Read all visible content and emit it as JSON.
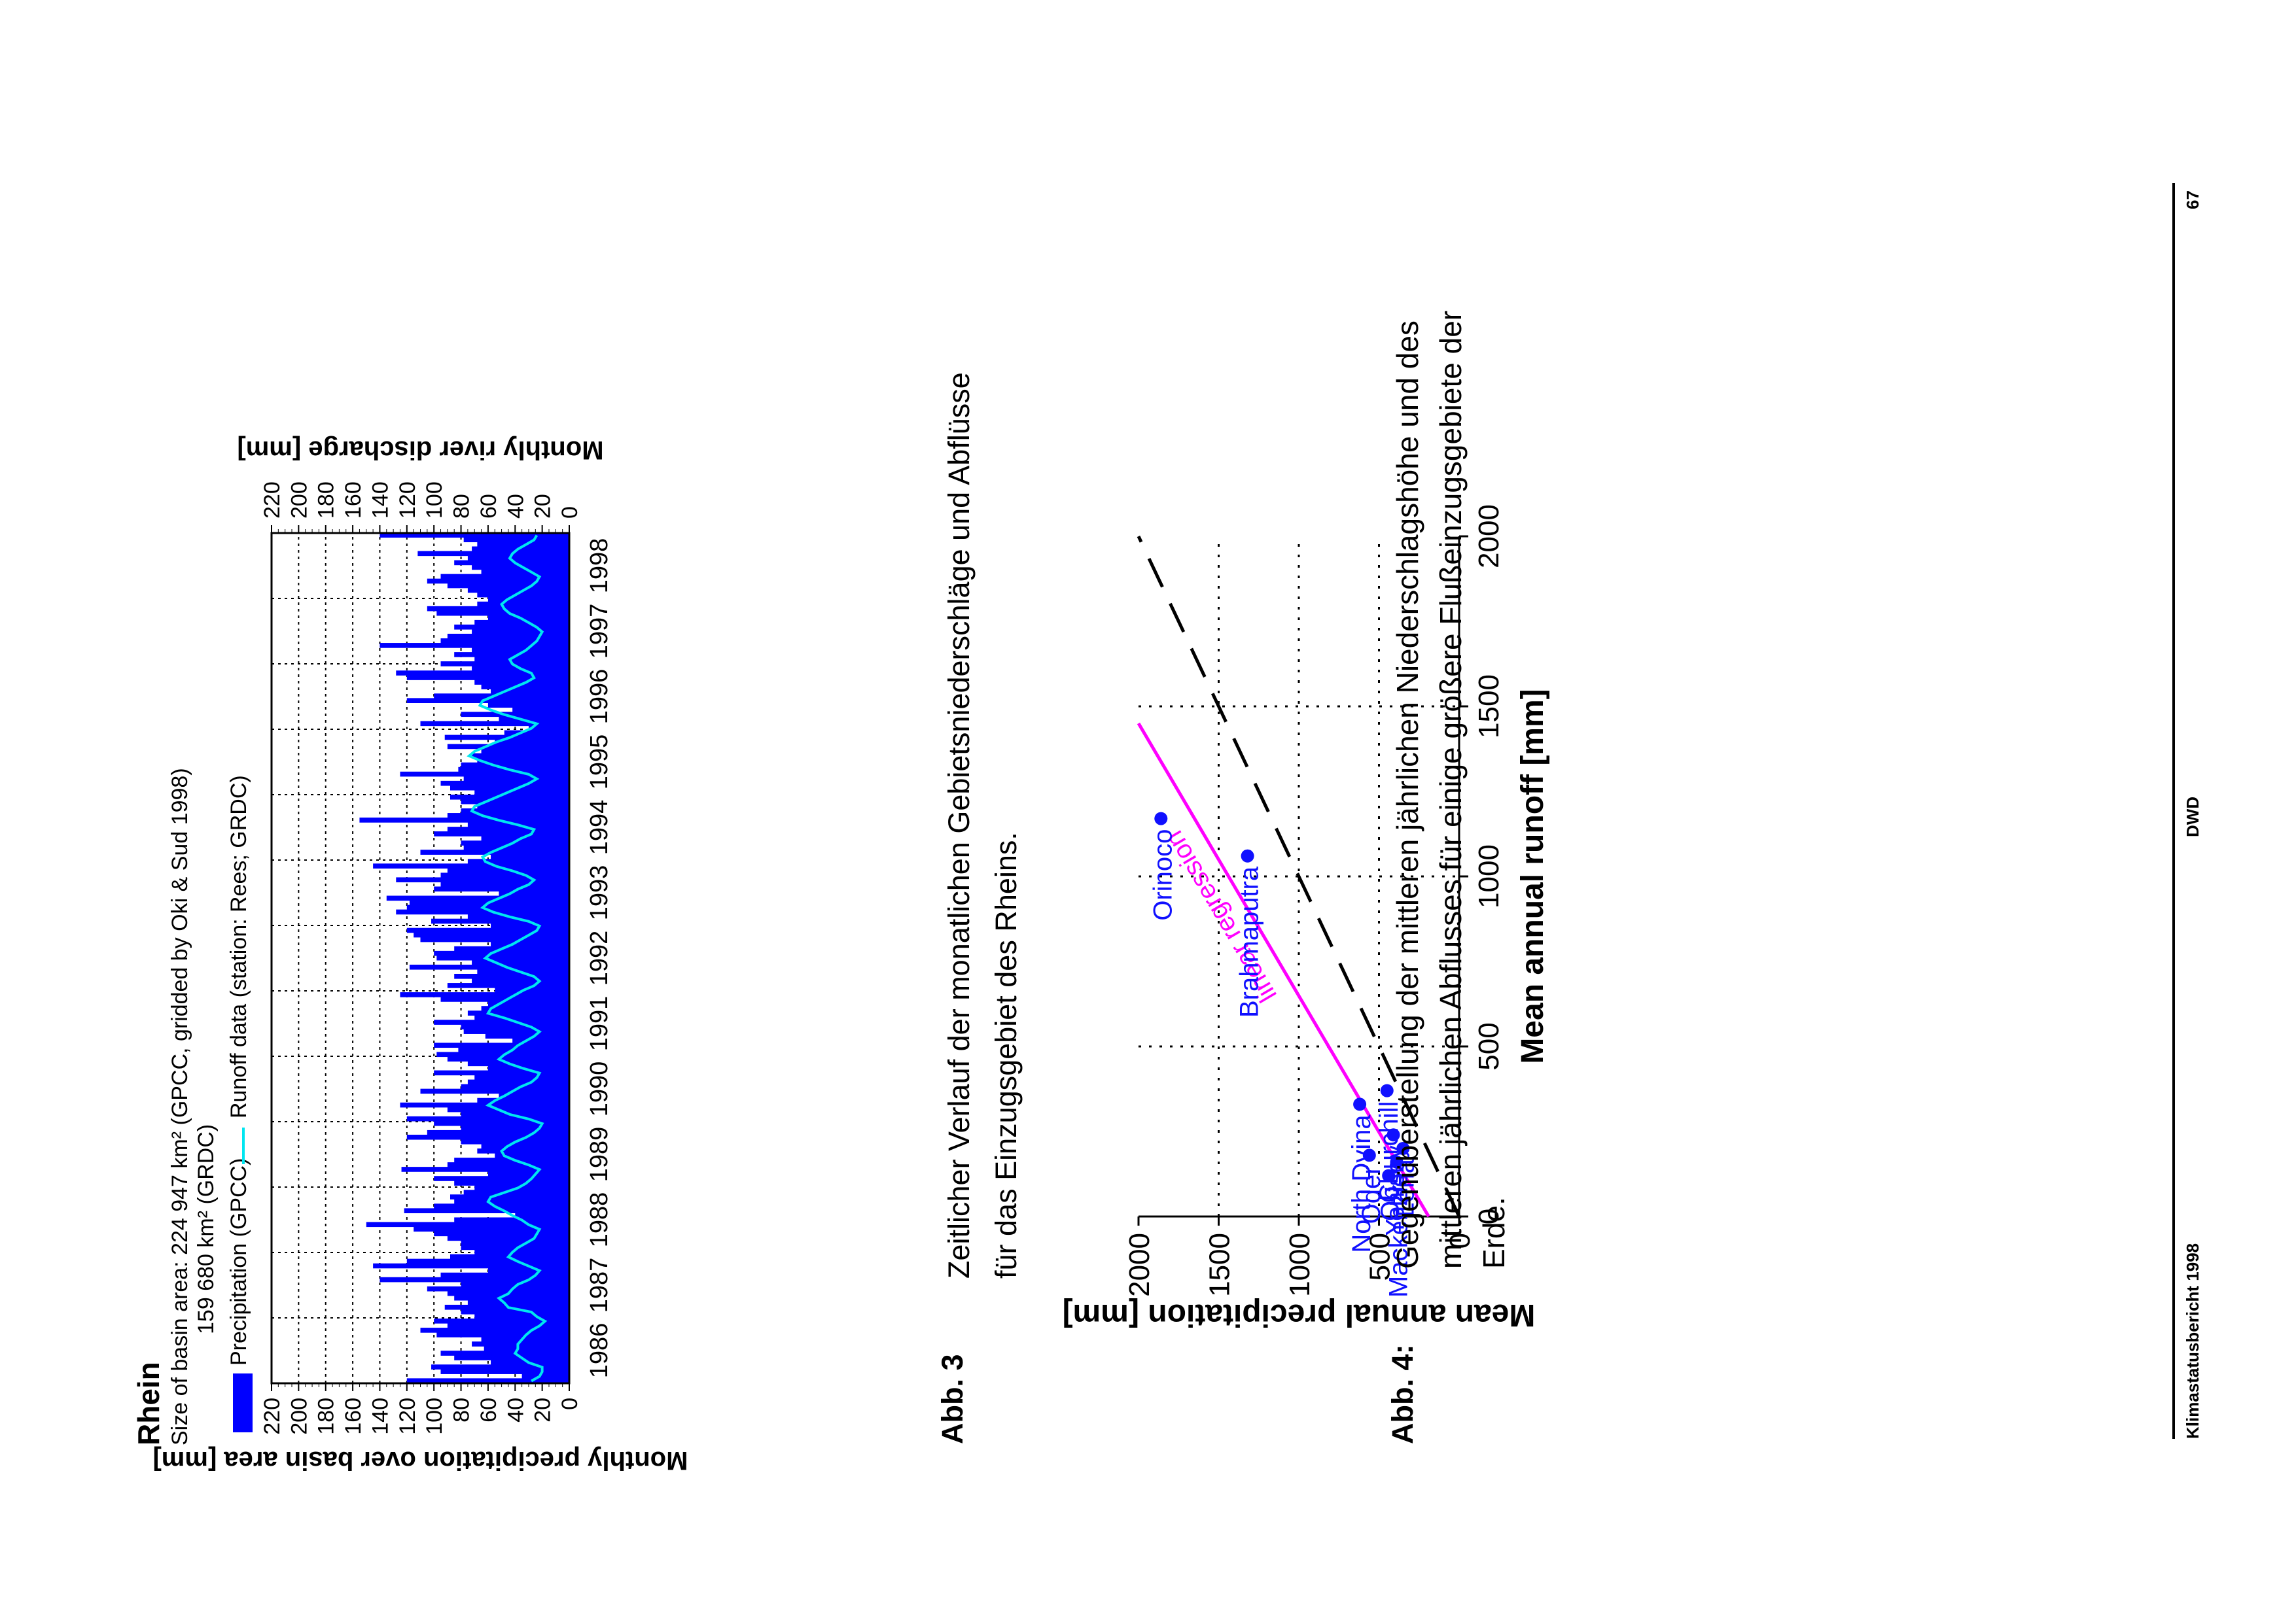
{
  "footer": {
    "left": "Klimastatusbericht 1998",
    "center": "DWD",
    "page": "67"
  },
  "fig3": {
    "label": "Abb. 3",
    "caption_line1": "Zeitlicher Verlauf der monatlichen Gebietsniederschläge und Abflüsse",
    "caption_line2": "für das Einzugsgebiet des Rheins."
  },
  "fig4": {
    "label": "Abb. 4:",
    "caption_line1": "Gegenüberstellung der mittleren jährlichen Niederschlagshöhe und des",
    "caption_line2": "mittleren jährlichen Abflusses für einige größere Flußeinzugsgebiete der",
    "caption_line3": "Erde."
  },
  "chart_data": [
    {
      "type": "bar",
      "title": "Rhein",
      "subtitle_line1": "Size of basin area: 224 947 km² (GPCC, gridded by Oki & Sud 1998)",
      "subtitle_line2": "159 680 km² (GRDC)",
      "legend": {
        "precip": "Precipitation (GPCC)",
        "runoff": "Runoff data (station: Rees; GRDC)"
      },
      "ylabel_left": "Monthly precipitation over basin area [mm]",
      "ylabel_right": "Monthly river discharge [mm]",
      "ylim": [
        0,
        220
      ],
      "yticks": [
        "0",
        "20",
        "40",
        "60",
        "80",
        "100",
        "120",
        "140",
        "160",
        "180",
        "200",
        "220"
      ],
      "xticks": [
        "1986",
        "1987",
        "1988",
        "1989",
        "1990",
        "1991",
        "1992",
        "1993",
        "1994",
        "1995",
        "1996",
        "1997",
        "1998"
      ],
      "colors": {
        "precip": "#0000ff",
        "runoff": "#00e6f0",
        "grid": "#000000"
      },
      "series": [
        {
          "name": "Precipitation (GPCC)",
          "values": [
            120,
            35,
            95,
            102,
            58,
            85,
            95,
            63,
            72,
            65,
            98,
            110,
            90,
            100,
            70,
            80,
            92,
            75,
            85,
            90,
            105,
            80,
            140,
            95,
            60,
            145,
            120,
            88,
            70,
            80,
            80,
            90,
            100,
            115,
            150,
            85,
            40,
            122,
            100,
            85,
            88,
            78,
            70,
            85,
            100,
            60,
            124,
            90,
            85,
            55,
            68,
            65,
            80,
            120,
            105,
            80,
            100,
            120,
            80,
            90,
            125,
            68,
            52,
            110,
            80,
            75,
            70,
            100,
            60,
            75,
            90,
            98,
            82,
            100,
            42,
            62,
            78,
            80,
            100,
            70,
            75,
            65,
            60,
            95,
            125,
            55,
            90,
            72,
            85,
            68,
            118,
            72,
            98,
            100,
            85,
            58,
            110,
            115,
            120,
            58,
            102,
            75,
            128,
            120,
            118,
            135,
            52,
            100,
            95,
            128,
            95,
            90,
            145,
            75,
            58,
            110,
            78,
            80,
            65,
            100,
            90,
            75,
            155,
            90,
            80,
            68,
            80,
            88,
            70,
            88,
            95,
            78,
            125,
            82,
            80,
            68,
            72,
            65,
            90,
            55,
            92,
            48,
            30,
            110,
            52,
            80,
            42,
            60,
            120,
            100,
            58,
            65,
            70,
            120,
            128,
            72,
            95,
            70,
            85,
            72,
            140,
            95,
            90,
            72,
            85,
            70,
            60,
            98,
            105,
            68,
            60,
            68,
            75,
            90,
            105,
            95,
            65,
            72,
            85,
            75,
            112,
            72,
            68,
            78,
            140
          ]
        },
        {
          "name": "Runoff data (station: Rees; GRDC)",
          "values": [
            28,
            22,
            20,
            20,
            30,
            35,
            40,
            38,
            38,
            35,
            32,
            28,
            22,
            18,
            24,
            28,
            45,
            48,
            52,
            45,
            42,
            38,
            30,
            25,
            22,
            30,
            38,
            45,
            42,
            38,
            32,
            26,
            24,
            22,
            30,
            35,
            42,
            48,
            55,
            60,
            58,
            48,
            38,
            32,
            28,
            25,
            22,
            30,
            40,
            48,
            50,
            46,
            40,
            32,
            26,
            22,
            20,
            30,
            44,
            52,
            60,
            55,
            48,
            42,
            36,
            28,
            24,
            22,
            34,
            44,
            52,
            48,
            42,
            38,
            32,
            26,
            22,
            28,
            38,
            48,
            60,
            58,
            52,
            46,
            40,
            34,
            26,
            22,
            26,
            36,
            46,
            54,
            62,
            58,
            50,
            42,
            36,
            30,
            24,
            22,
            30,
            44,
            56,
            64,
            60,
            52,
            44,
            38,
            30,
            26,
            32,
            42,
            54,
            62,
            64,
            58,
            50,
            42,
            36,
            28,
            26,
            38,
            52,
            64,
            72,
            70,
            62,
            54,
            46,
            38,
            30,
            24,
            30,
            44,
            56,
            66,
            74,
            70,
            62,
            54,
            44,
            36,
            28,
            24,
            36,
            48,
            58,
            66,
            64,
            56,
            48,
            40,
            32,
            26,
            28,
            36,
            42,
            44,
            38,
            32,
            28,
            24,
            22,
            20,
            24,
            30,
            36,
            44,
            48,
            50,
            46,
            40,
            34,
            28,
            24,
            22,
            28,
            34,
            40,
            44,
            42,
            38,
            32,
            26,
            24
          ]
        }
      ]
    },
    {
      "type": "scatter",
      "xlabel": "Mean annual runoff [mm]",
      "ylabel": "Mean annual precipitation [mm]",
      "xlim": [
        0,
        2000
      ],
      "ylim": [
        0,
        2000
      ],
      "xticks": [
        "0",
        "500",
        "1000",
        "1500",
        "2000"
      ],
      "yticks": [
        "0",
        "500",
        "1000",
        "1500",
        "2000"
      ],
      "colors": {
        "points": "#1010ff",
        "regression": "#ff00ff",
        "identity": "#000000"
      },
      "points": [
        {
          "name": "Orinoco",
          "x": 1170,
          "y": 1860
        },
        {
          "name": "Brahmaputra",
          "x": 1060,
          "y": 1320
        },
        {
          "name": "Oder",
          "x": 180,
          "y": 560
        },
        {
          "name": "North Dvina",
          "x": 330,
          "y": 620
        },
        {
          "name": "Churchill",
          "x": 370,
          "y": 450
        },
        {
          "name": "Yenisey",
          "x": 240,
          "y": 410
        },
        {
          "name": "Lena",
          "x": 200,
          "y": 350
        },
        {
          "name": "Ob",
          "x": 120,
          "y": 440
        },
        {
          "name": "Mackenzie",
          "x": 160,
          "y": 390
        }
      ],
      "annotations": {
        "regression": "linear regression"
      },
      "regression_line": {
        "x": [
          0,
          1450
        ],
        "y": [
          190,
          2000
        ]
      },
      "identity_line": {
        "x": [
          0,
          2000
        ],
        "y": [
          0,
          2000
        ]
      }
    }
  ]
}
